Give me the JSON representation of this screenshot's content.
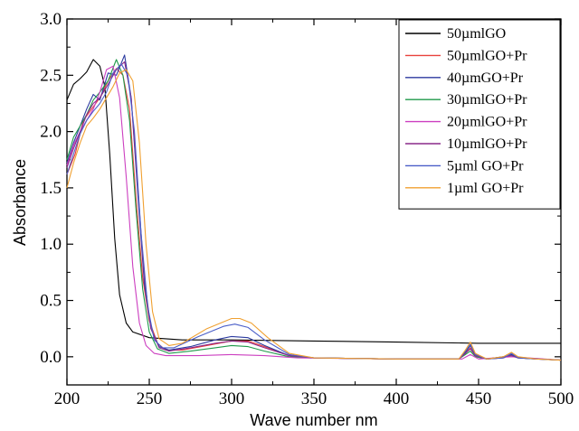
{
  "chart_data": {
    "type": "line",
    "title": "",
    "xlabel": "Wave number nm",
    "ylabel": "Absorbance",
    "xlim": [
      200,
      500
    ],
    "ylim": [
      -0.25,
      3.0
    ],
    "x_ticks": [
      "200",
      "250",
      "300",
      "350",
      "400",
      "450",
      "500"
    ],
    "y_ticks": [
      "0.0",
      "0.5",
      "1.0",
      "1.5",
      "2.0",
      "2.5",
      "3.0"
    ],
    "x_tick_values": [
      200,
      250,
      300,
      350,
      400,
      450,
      500
    ],
    "y_tick_values": [
      0.0,
      0.5,
      1.0,
      1.5,
      2.0,
      2.5,
      3.0
    ],
    "grid": false,
    "legend_position": "top-right",
    "series": [
      {
        "name": "50µmlGO",
        "color": "#000000",
        "points": [
          [
            200,
            2.28
          ],
          [
            204,
            2.42
          ],
          [
            208,
            2.47
          ],
          [
            212,
            2.53
          ],
          [
            216,
            2.64
          ],
          [
            220,
            2.58
          ],
          [
            223,
            2.4
          ],
          [
            226,
            1.8
          ],
          [
            229,
            1.05
          ],
          [
            232,
            0.55
          ],
          [
            236,
            0.3
          ],
          [
            240,
            0.22
          ],
          [
            250,
            0.17
          ],
          [
            270,
            0.15
          ],
          [
            300,
            0.15
          ],
          [
            350,
            0.14
          ],
          [
            400,
            0.13
          ],
          [
            450,
            0.12
          ],
          [
            500,
            0.12
          ]
        ]
      },
      {
        "name": "50µmlGO+Pr",
        "color": "#e8413c",
        "points": [
          [
            200,
            1.62
          ],
          [
            205,
            1.8
          ],
          [
            210,
            2.1
          ],
          [
            215,
            2.2
          ],
          [
            220,
            2.3
          ],
          [
            225,
            2.45
          ],
          [
            230,
            2.56
          ],
          [
            234,
            2.5
          ],
          [
            238,
            2.2
          ],
          [
            242,
            1.4
          ],
          [
            246,
            0.7
          ],
          [
            250,
            0.32
          ],
          [
            255,
            0.12
          ],
          [
            260,
            0.06
          ],
          [
            270,
            0.06
          ],
          [
            285,
            0.1
          ],
          [
            300,
            0.14
          ],
          [
            310,
            0.14
          ],
          [
            320,
            0.09
          ],
          [
            335,
            0.01
          ],
          [
            350,
            -0.01
          ],
          [
            400,
            -0.02
          ],
          [
            438,
            -0.02
          ],
          [
            442,
            0.03
          ],
          [
            445,
            0.08
          ],
          [
            448,
            0.01
          ],
          [
            455,
            -0.02
          ],
          [
            465,
            -0.01
          ],
          [
            470,
            0.02
          ],
          [
            474,
            -0.01
          ],
          [
            485,
            -0.02
          ],
          [
            500,
            -0.03
          ]
        ]
      },
      {
        "name": "40µmGO+Pr",
        "color": "#2b3a9f",
        "points": [
          [
            200,
            1.72
          ],
          [
            204,
            1.9
          ],
          [
            208,
            2.05
          ],
          [
            212,
            2.2
          ],
          [
            216,
            2.33
          ],
          [
            220,
            2.28
          ],
          [
            225,
            2.52
          ],
          [
            230,
            2.5
          ],
          [
            235,
            2.68
          ],
          [
            239,
            2.3
          ],
          [
            243,
            1.45
          ],
          [
            247,
            0.65
          ],
          [
            251,
            0.25
          ],
          [
            256,
            0.09
          ],
          [
            262,
            0.06
          ],
          [
            275,
            0.09
          ],
          [
            290,
            0.15
          ],
          [
            300,
            0.18
          ],
          [
            310,
            0.17
          ],
          [
            320,
            0.1
          ],
          [
            335,
            0.01
          ],
          [
            350,
            -0.01
          ],
          [
            400,
            -0.02
          ],
          [
            438,
            -0.02
          ],
          [
            442,
            0.04
          ],
          [
            445,
            0.1
          ],
          [
            448,
            0.02
          ],
          [
            455,
            -0.02
          ],
          [
            465,
            -0.01
          ],
          [
            470,
            0.02
          ],
          [
            474,
            -0.01
          ],
          [
            485,
            -0.02
          ],
          [
            500,
            -0.03
          ]
        ]
      },
      {
        "name": "30µmlGO+Pr",
        "color": "#1f9a4a",
        "points": [
          [
            200,
            1.75
          ],
          [
            204,
            1.95
          ],
          [
            208,
            2.05
          ],
          [
            212,
            2.15
          ],
          [
            216,
            2.28
          ],
          [
            220,
            2.35
          ],
          [
            225,
            2.45
          ],
          [
            230,
            2.64
          ],
          [
            234,
            2.5
          ],
          [
            238,
            2.1
          ],
          [
            242,
            1.3
          ],
          [
            246,
            0.6
          ],
          [
            250,
            0.22
          ],
          [
            255,
            0.07
          ],
          [
            262,
            0.03
          ],
          [
            275,
            0.05
          ],
          [
            290,
            0.08
          ],
          [
            300,
            0.1
          ],
          [
            310,
            0.09
          ],
          [
            320,
            0.05
          ],
          [
            335,
            0.0
          ],
          [
            350,
            -0.01
          ],
          [
            400,
            -0.02
          ],
          [
            438,
            -0.02
          ],
          [
            442,
            0.02
          ],
          [
            445,
            0.05
          ],
          [
            448,
            0.0
          ],
          [
            455,
            -0.02
          ],
          [
            470,
            0.01
          ],
          [
            474,
            -0.01
          ],
          [
            500,
            -0.03
          ]
        ]
      },
      {
        "name": "20µmlGO+Pr",
        "color": "#cc3fc0",
        "points": [
          [
            200,
            1.7
          ],
          [
            204,
            1.88
          ],
          [
            208,
            2.0
          ],
          [
            212,
            2.1
          ],
          [
            216,
            2.2
          ],
          [
            220,
            2.35
          ],
          [
            224,
            2.55
          ],
          [
            228,
            2.58
          ],
          [
            232,
            2.3
          ],
          [
            236,
            1.6
          ],
          [
            240,
            0.8
          ],
          [
            244,
            0.3
          ],
          [
            248,
            0.1
          ],
          [
            253,
            0.03
          ],
          [
            260,
            0.01
          ],
          [
            280,
            0.01
          ],
          [
            300,
            0.02
          ],
          [
            320,
            0.01
          ],
          [
            340,
            -0.01
          ],
          [
            400,
            -0.02
          ],
          [
            440,
            -0.02
          ],
          [
            445,
            0.02
          ],
          [
            450,
            -0.02
          ],
          [
            470,
            0.0
          ],
          [
            500,
            -0.03
          ]
        ]
      },
      {
        "name": "10µmlGO+Pr",
        "color": "#8a2a8a",
        "points": [
          [
            200,
            1.68
          ],
          [
            204,
            1.85
          ],
          [
            208,
            2.0
          ],
          [
            212,
            2.15
          ],
          [
            216,
            2.25
          ],
          [
            220,
            2.3
          ],
          [
            225,
            2.42
          ],
          [
            230,
            2.55
          ],
          [
            235,
            2.62
          ],
          [
            239,
            2.3
          ],
          [
            243,
            1.5
          ],
          [
            247,
            0.7
          ],
          [
            251,
            0.25
          ],
          [
            256,
            0.08
          ],
          [
            262,
            0.05
          ],
          [
            275,
            0.08
          ],
          [
            290,
            0.12
          ],
          [
            300,
            0.14
          ],
          [
            310,
            0.13
          ],
          [
            320,
            0.08
          ],
          [
            335,
            0.01
          ],
          [
            350,
            -0.01
          ],
          [
            400,
            -0.02
          ],
          [
            438,
            -0.02
          ],
          [
            442,
            0.03
          ],
          [
            445,
            0.07
          ],
          [
            448,
            0.01
          ],
          [
            455,
            -0.02
          ],
          [
            470,
            0.01
          ],
          [
            474,
            -0.01
          ],
          [
            500,
            -0.03
          ]
        ]
      },
      {
        "name": "5µml GO+Pr",
        "color": "#4a5ec8",
        "points": [
          [
            200,
            1.62
          ],
          [
            204,
            1.8
          ],
          [
            208,
            1.98
          ],
          [
            212,
            2.1
          ],
          [
            216,
            2.18
          ],
          [
            220,
            2.25
          ],
          [
            224,
            2.35
          ],
          [
            228,
            2.52
          ],
          [
            233,
            2.6
          ],
          [
            237,
            2.5
          ],
          [
            241,
            2.0
          ],
          [
            245,
            1.1
          ],
          [
            249,
            0.45
          ],
          [
            253,
            0.15
          ],
          [
            258,
            0.08
          ],
          [
            265,
            0.08
          ],
          [
            280,
            0.18
          ],
          [
            295,
            0.27
          ],
          [
            302,
            0.29
          ],
          [
            310,
            0.26
          ],
          [
            320,
            0.15
          ],
          [
            335,
            0.02
          ],
          [
            350,
            -0.01
          ],
          [
            400,
            -0.02
          ],
          [
            438,
            -0.02
          ],
          [
            442,
            0.05
          ],
          [
            445,
            0.11
          ],
          [
            448,
            0.02
          ],
          [
            455,
            -0.02
          ],
          [
            465,
            -0.01
          ],
          [
            470,
            0.03
          ],
          [
            474,
            -0.01
          ],
          [
            485,
            -0.02
          ],
          [
            500,
            -0.03
          ]
        ]
      },
      {
        "name": "1µml GO+Pr",
        "color": "#f0a030",
        "points": [
          [
            200,
            1.5
          ],
          [
            204,
            1.72
          ],
          [
            208,
            1.9
          ],
          [
            212,
            2.05
          ],
          [
            216,
            2.12
          ],
          [
            220,
            2.2
          ],
          [
            224,
            2.3
          ],
          [
            228,
            2.4
          ],
          [
            232,
            2.52
          ],
          [
            236,
            2.55
          ],
          [
            240,
            2.45
          ],
          [
            244,
            1.9
          ],
          [
            248,
            1.0
          ],
          [
            252,
            0.4
          ],
          [
            256,
            0.16
          ],
          [
            262,
            0.1
          ],
          [
            270,
            0.12
          ],
          [
            285,
            0.25
          ],
          [
            300,
            0.34
          ],
          [
            305,
            0.34
          ],
          [
            312,
            0.3
          ],
          [
            322,
            0.17
          ],
          [
            335,
            0.03
          ],
          [
            350,
            -0.01
          ],
          [
            400,
            -0.02
          ],
          [
            438,
            -0.02
          ],
          [
            442,
            0.06
          ],
          [
            445,
            0.13
          ],
          [
            448,
            0.03
          ],
          [
            455,
            -0.02
          ],
          [
            465,
            0.0
          ],
          [
            470,
            0.04
          ],
          [
            474,
            0.0
          ],
          [
            485,
            -0.02
          ],
          [
            500,
            -0.03
          ]
        ]
      }
    ]
  }
}
